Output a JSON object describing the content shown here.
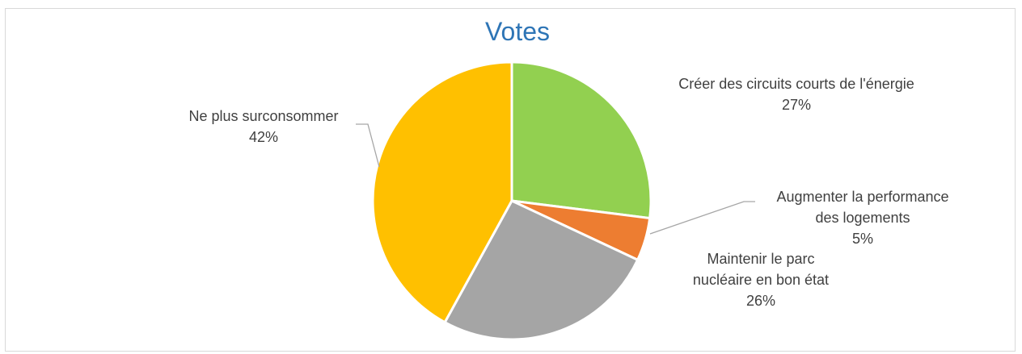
{
  "chart_data": {
    "type": "pie",
    "title": "Votes",
    "start_angle_deg": 0,
    "direction": "clockwise",
    "slices": [
      {
        "label": [
          "Créer des circuits courts de l'énergie"
        ],
        "value": 27,
        "pct": "27%",
        "color": "#92d050"
      },
      {
        "label": [
          "Augmenter la performance",
          "des logements"
        ],
        "value": 5,
        "pct": "5%",
        "color": "#ed7d31"
      },
      {
        "label": [
          "Maintenir le parc",
          "nucléaire en bon état"
        ],
        "value": 26,
        "pct": "26%",
        "color": "#a5a5a5"
      },
      {
        "label": [
          "Ne plus surconsommer"
        ],
        "value": 42,
        "pct": "42%",
        "color": "#ffc000"
      }
    ]
  }
}
